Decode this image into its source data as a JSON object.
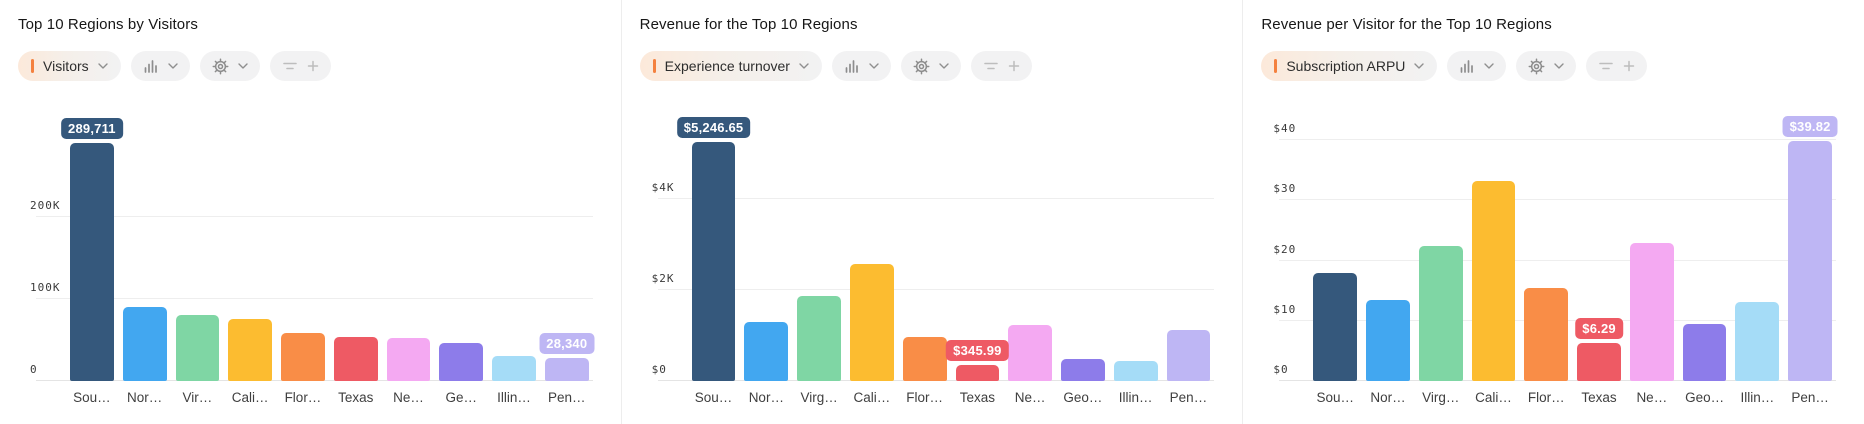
{
  "accent_color": "#f4813f",
  "chart_data": [
    {
      "type": "bar",
      "title": "Top 10 Regions by Visitors",
      "metric_selector": "Visitors",
      "categories": [
        "Sou…",
        "Nor…",
        "Vir…",
        "Cali…",
        "Flor…",
        "Texas",
        "Ne…",
        "Ge…",
        "Illin…",
        "Pen…"
      ],
      "values": [
        289711,
        90000,
        81000,
        76000,
        59000,
        54000,
        52000,
        46000,
        30500,
        28340
      ],
      "bar_colors": [
        "#35587c",
        "#42a7f0",
        "#7fd6a4",
        "#fcbc30",
        "#f98d47",
        "#ee5a64",
        "#f4a9f2",
        "#8d7cea",
        "#a5dcf7",
        "#beb6f4"
      ],
      "data_labels": {
        "0": "289,711",
        "9": "28,340"
      },
      "ylim": [
        0,
        330000
      ],
      "gridlines": [
        {
          "value": 0,
          "label": "0"
        },
        {
          "value": 100000,
          "label": "100K"
        },
        {
          "value": 200000,
          "label": "200K"
        }
      ],
      "legend": "none",
      "grid": "horizontal"
    },
    {
      "type": "bar",
      "title": "Revenue for the Top 10 Regions",
      "metric_selector": "Experience turnover",
      "categories": [
        "Sou…",
        "Nor…",
        "Virg…",
        "Cali…",
        "Flor…",
        "Texas",
        "Ne…",
        "Geo…",
        "Illin…",
        "Pen…"
      ],
      "values": [
        5246.65,
        1290,
        1860,
        2575,
        965,
        345.99,
        1220,
        475,
        440,
        1125
      ],
      "bar_colors": [
        "#35587c",
        "#42a7f0",
        "#7fd6a4",
        "#fcbc30",
        "#f98d47",
        "#ee5a64",
        "#f4a9f2",
        "#8d7cea",
        "#a5dcf7",
        "#beb6f4"
      ],
      "data_labels": {
        "0": "$5,246.65",
        "5": "$345.99"
      },
      "ylim": [
        0,
        5950
      ],
      "gridlines": [
        {
          "value": 0,
          "label": "$0"
        },
        {
          "value": 2000,
          "label": "$2K"
        },
        {
          "value": 4000,
          "label": "$4K"
        }
      ],
      "legend": "none",
      "grid": "horizontal"
    },
    {
      "type": "bar",
      "title": "Revenue per Visitor for the Top 10 Regions",
      "metric_selector": "Subscription ARPU",
      "categories": [
        "Sou…",
        "Nor…",
        "Virg…",
        "Cali…",
        "Flor…",
        "Texas",
        "Ne…",
        "Geo…",
        "Illin…",
        "Pen…"
      ],
      "values": [
        17.9,
        13.4,
        22.4,
        33.2,
        15.5,
        6.29,
        23.0,
        9.4,
        13.2,
        39.82
      ],
      "bar_colors": [
        "#35587c",
        "#42a7f0",
        "#7fd6a4",
        "#fcbc30",
        "#f98d47",
        "#ee5a64",
        "#f4a9f2",
        "#8d7cea",
        "#a5dcf7",
        "#beb6f4"
      ],
      "data_labels": {
        "5": "$6.29",
        "9": "$39.82"
      },
      "ylim": [
        0,
        45
      ],
      "gridlines": [
        {
          "value": 0,
          "label": "$0"
        },
        {
          "value": 10,
          "label": "$10"
        },
        {
          "value": 20,
          "label": "$20"
        },
        {
          "value": 30,
          "label": "$30"
        },
        {
          "value": 40,
          "label": "$40"
        }
      ],
      "legend": "none",
      "grid": "horizontal"
    }
  ]
}
